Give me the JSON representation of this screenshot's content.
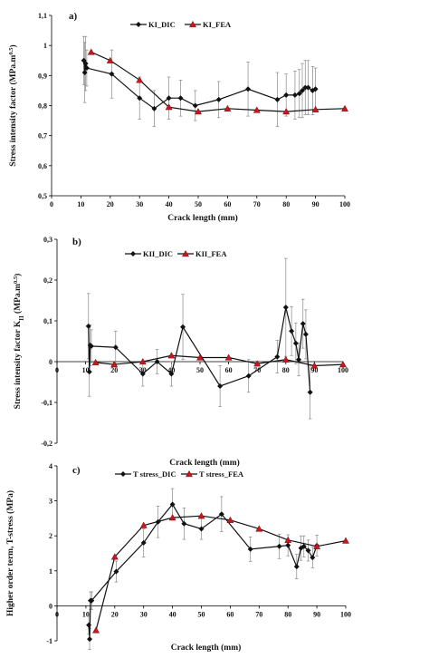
{
  "chart_data": [
    {
      "type": "line",
      "panel_label": "a)",
      "xlabel": "Crack length (mm)",
      "ylabel": "Stress intensity factor (MPa.m",
      "ylabel_sup": "0.5",
      "ylabel_tail": ")",
      "xlim": [
        0,
        100
      ],
      "ylim": [
        0.5,
        1.1
      ],
      "xticks": [
        0,
        10,
        20,
        30,
        40,
        50,
        60,
        70,
        80,
        90,
        100
      ],
      "yticks": [
        0.5,
        0.6,
        0.7,
        0.8,
        0.9,
        1.0,
        1.1
      ],
      "xtick_labels": [
        "0",
        "10",
        "20",
        "30",
        "40",
        "50",
        "60",
        "70",
        "80",
        "90",
        "100"
      ],
      "ytick_labels": [
        "0,5",
        "0,6",
        "0,7",
        "0,8",
        "0,9",
        "1",
        "1,1"
      ],
      "legend_position": "top",
      "series": [
        {
          "name": "KI_DIC",
          "marker": "diamond",
          "x": [
            11,
            11.3,
            11.6,
            12,
            20.5,
            30,
            35,
            40,
            44,
            49,
            57,
            67,
            77,
            80,
            83,
            84.5,
            85.5,
            86.5,
            87.5,
            89,
            90
          ],
          "y": [
            0.95,
            0.91,
            0.94,
            0.925,
            0.905,
            0.825,
            0.79,
            0.825,
            0.825,
            0.8,
            0.82,
            0.855,
            0.82,
            0.835,
            0.835,
            0.84,
            0.85,
            0.86,
            0.86,
            0.85,
            0.855
          ],
          "err": [
            0.08,
            0.1,
            0.09,
            0.06,
            0.08,
            0.07,
            0.06,
            0.07,
            0.06,
            0.05,
            0.06,
            0.09,
            0.09,
            0.07,
            0.08,
            0.08,
            0.09,
            0.09,
            0.09,
            0.08,
            0.07
          ]
        },
        {
          "name": "KI_FEA",
          "marker": "triangle",
          "x": [
            13.5,
            20,
            30,
            40,
            50,
            60,
            70,
            80,
            90,
            100
          ],
          "y": [
            0.978,
            0.95,
            0.885,
            0.795,
            0.78,
            0.79,
            0.785,
            0.78,
            0.787,
            0.79
          ]
        }
      ]
    },
    {
      "type": "line",
      "panel_label": "b)",
      "xlabel": "Crack length (mm)",
      "ylabel": "Stress intensity factor K",
      "ylabel_sub": "II",
      "ylabel_tail": " (MPa.m",
      "ylabel_sup": "0.5",
      "ylabel_tail2": ")",
      "xlim": [
        0,
        100
      ],
      "ylim": [
        -0.2,
        0.3
      ],
      "xticks": [
        0,
        10,
        20,
        30,
        40,
        50,
        60,
        70,
        80,
        90,
        100
      ],
      "yticks": [
        -0.2,
        -0.1,
        0,
        0.1,
        0.2,
        0.3
      ],
      "xtick_labels": [
        "0",
        "10",
        "20",
        "30",
        "40",
        "50",
        "60",
        "70",
        "80",
        "90",
        "100"
      ],
      "ytick_labels": [
        "-0,2",
        "-0,1",
        "0",
        "0,1",
        "0,2",
        "0,3"
      ],
      "legend_position": "top",
      "series": [
        {
          "name": "KII_DIC",
          "marker": "diamond",
          "x": [
            11,
            11.3,
            11.6,
            12,
            20.5,
            30,
            35,
            40,
            44,
            57,
            67,
            77,
            80,
            82,
            83.5,
            84.5,
            86,
            87,
            88.5
          ],
          "y": [
            0.087,
            -0.025,
            0.04,
            0.038,
            0.035,
            -0.03,
            0.0,
            -0.03,
            0.085,
            -0.06,
            -0.035,
            0.012,
            0.133,
            0.075,
            0.045,
            0.005,
            0.093,
            0.067,
            -0.075
          ],
          "err": [
            0.08,
            0.06,
            0.05,
            0.04,
            0.04,
            0.03,
            0.03,
            0.03,
            0.08,
            0.05,
            0.04,
            0.04,
            0.12,
            0.06,
            0.05,
            0.04,
            0.06,
            0.06,
            0.065
          ]
        },
        {
          "name": "KII_FEA",
          "marker": "triangle",
          "x": [
            13.5,
            20,
            30,
            40,
            50,
            60,
            70,
            80,
            90,
            100
          ],
          "y": [
            -0.002,
            -0.007,
            0.0,
            0.015,
            0.01,
            0.01,
            -0.005,
            0.005,
            -0.01,
            -0.007
          ]
        }
      ]
    },
    {
      "type": "line",
      "panel_label": "c)",
      "xlabel": "Crack length (mm)",
      "ylabel": "Higher order term, T-stress (MPa)",
      "xlim": [
        0,
        100
      ],
      "ylim": [
        -1,
        4
      ],
      "xticks": [
        0,
        10,
        20,
        30,
        40,
        50,
        60,
        70,
        80,
        90,
        100
      ],
      "yticks": [
        -1,
        0,
        1,
        2,
        3,
        4
      ],
      "xtick_labels": [
        "0",
        "10",
        "20",
        "30",
        "40",
        "50",
        "60",
        "70",
        "80",
        "90",
        "100"
      ],
      "ytick_labels": [
        "-1",
        "0",
        "1",
        "2",
        "3",
        "4"
      ],
      "legend_position": "top",
      "series": [
        {
          "name": "T stress_DIC",
          "marker": "diamond",
          "x": [
            11,
            11.3,
            11.6,
            12,
            20.5,
            30,
            35,
            40,
            44,
            50,
            57,
            67,
            77,
            80,
            83,
            84.5,
            85.5,
            87,
            88.5,
            90
          ],
          "y": [
            -0.55,
            -0.95,
            0.15,
            0.15,
            0.98,
            1.8,
            2.4,
            2.9,
            2.35,
            2.2,
            2.62,
            1.62,
            1.7,
            1.73,
            1.12,
            1.65,
            1.7,
            1.58,
            1.38,
            1.72
          ],
          "err": [
            0.25,
            0.3,
            0.25,
            0.25,
            0.3,
            0.4,
            0.45,
            0.45,
            0.45,
            0.3,
            0.5,
            0.35,
            0.35,
            0.3,
            0.35,
            0.35,
            0.3,
            0.3,
            0.3,
            0.3
          ]
        },
        {
          "name": "T stress_FEA",
          "marker": "triangle",
          "x": [
            13.5,
            20,
            30,
            40,
            50,
            60,
            70,
            80,
            90,
            100
          ],
          "y": [
            -0.7,
            1.4,
            2.3,
            2.52,
            2.57,
            2.45,
            2.2,
            1.88,
            1.7,
            1.86
          ]
        }
      ]
    }
  ]
}
